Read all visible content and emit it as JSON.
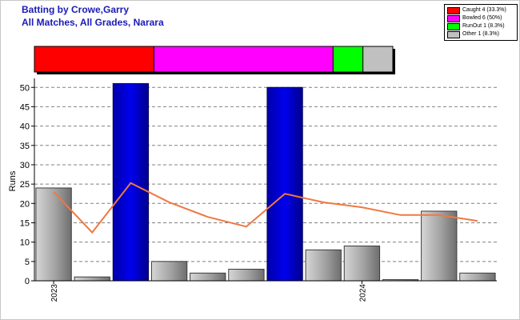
{
  "header": {
    "title": "Batting by Crowe,Garry",
    "subtitle": "All Matches, All Grades, Narara"
  },
  "legend": [
    {
      "label": "Caught 4 (33.3%)",
      "color": "#ff0000"
    },
    {
      "label": "Bowled 6 (50%)",
      "color": "#ff00ff"
    },
    {
      "label": "RunOut 1 (8.3%)",
      "color": "#00ff00"
    },
    {
      "label": "Other 1 (8.3%)",
      "color": "#c0c0c0"
    }
  ],
  "colors": {
    "not_out_bar": "#0000cc",
    "out_bar": "#a8a8a8",
    "trend_line": "#f07840"
  },
  "chart_data": [
    {
      "type": "bar",
      "orientation": "horizontal-stacked",
      "segments": [
        {
          "name": "Caught",
          "value": 4,
          "percent": 33.3,
          "color": "#ff0000"
        },
        {
          "name": "Bowled",
          "value": 6,
          "percent": 50,
          "color": "#ff00ff"
        },
        {
          "name": "RunOut",
          "value": 1,
          "percent": 8.3,
          "color": "#00ff00"
        },
        {
          "name": "Other",
          "value": 1,
          "percent": 8.3,
          "color": "#c0c0c0"
        }
      ]
    },
    {
      "type": "bar",
      "ylabel": "Runs",
      "xlabel": "",
      "ylim": [
        0,
        51.5
      ],
      "yticks": [
        0,
        5,
        10,
        15,
        20,
        25,
        30,
        35,
        40,
        45,
        50
      ],
      "grid": true,
      "xticks": [
        {
          "index": 0,
          "label": "2023"
        },
        {
          "index": 8,
          "label": "2024"
        }
      ],
      "series": [
        {
          "values": [
            24,
            1,
            51,
            5,
            2,
            3,
            50,
            8,
            9,
            0.3,
            18,
            2
          ],
          "not_out": [
            false,
            false,
            true,
            false,
            false,
            false,
            true,
            false,
            false,
            false,
            false,
            false
          ]
        },
        {
          "type": "line",
          "values": [
            23,
            12.5,
            25.3,
            20.3,
            16.5,
            14,
            22.5,
            20.3,
            19,
            17,
            17,
            15.5
          ]
        }
      ]
    }
  ]
}
